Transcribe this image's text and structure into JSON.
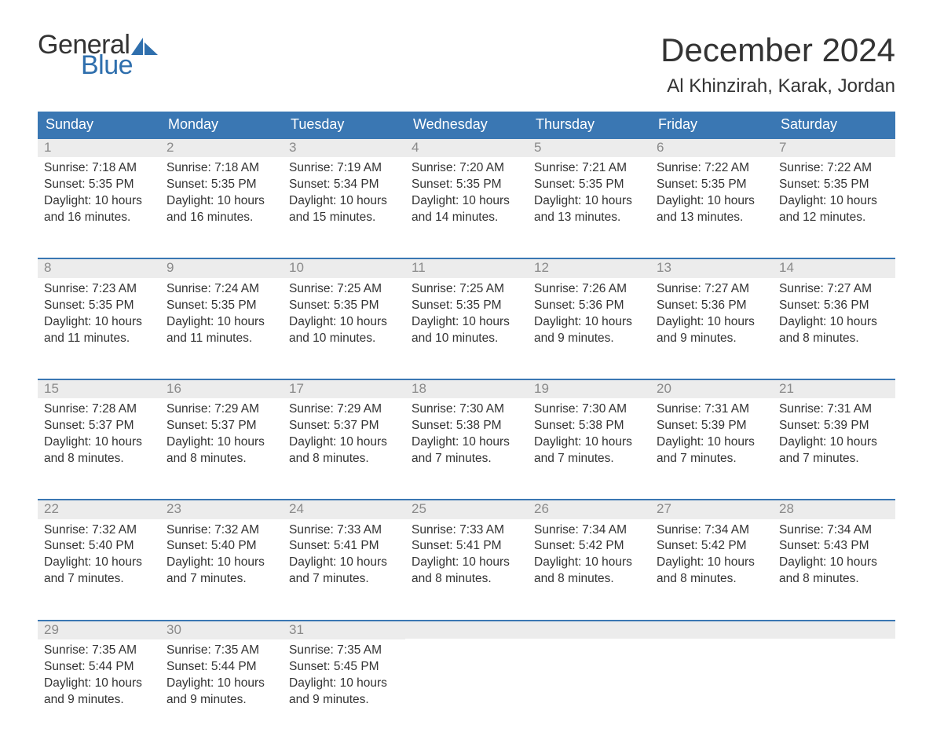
{
  "brand": {
    "word1": "General",
    "word2": "Blue",
    "word1_color": "#333333",
    "word2_color": "#2f6fad",
    "sail_color": "#2f6fad"
  },
  "title": {
    "month": "December 2024",
    "location": "Al Khinzirah, Karak, Jordan"
  },
  "styling": {
    "header_bg": "#3a77b3",
    "header_text_color": "#ffffff",
    "daynum_bg": "#ececec",
    "daynum_border_top": "#3a77b3",
    "daynum_color": "#8a8a8a",
    "body_text_color": "#333333",
    "page_bg": "#ffffff",
    "header_fontsize": 18,
    "daynum_fontsize": 17,
    "content_fontsize": 15.5,
    "month_title_fontsize": 42,
    "location_fontsize": 24
  },
  "weekdays": [
    "Sunday",
    "Monday",
    "Tuesday",
    "Wednesday",
    "Thursday",
    "Friday",
    "Saturday"
  ],
  "days": [
    {
      "n": "1",
      "sunrise": "7:18 AM",
      "sunset": "5:35 PM",
      "dl1": "Daylight: 10 hours",
      "dl2": "and 16 minutes."
    },
    {
      "n": "2",
      "sunrise": "7:18 AM",
      "sunset": "5:35 PM",
      "dl1": "Daylight: 10 hours",
      "dl2": "and 16 minutes."
    },
    {
      "n": "3",
      "sunrise": "7:19 AM",
      "sunset": "5:34 PM",
      "dl1": "Daylight: 10 hours",
      "dl2": "and 15 minutes."
    },
    {
      "n": "4",
      "sunrise": "7:20 AM",
      "sunset": "5:35 PM",
      "dl1": "Daylight: 10 hours",
      "dl2": "and 14 minutes."
    },
    {
      "n": "5",
      "sunrise": "7:21 AM",
      "sunset": "5:35 PM",
      "dl1": "Daylight: 10 hours",
      "dl2": "and 13 minutes."
    },
    {
      "n": "6",
      "sunrise": "7:22 AM",
      "sunset": "5:35 PM",
      "dl1": "Daylight: 10 hours",
      "dl2": "and 13 minutes."
    },
    {
      "n": "7",
      "sunrise": "7:22 AM",
      "sunset": "5:35 PM",
      "dl1": "Daylight: 10 hours",
      "dl2": "and 12 minutes."
    },
    {
      "n": "8",
      "sunrise": "7:23 AM",
      "sunset": "5:35 PM",
      "dl1": "Daylight: 10 hours",
      "dl2": "and 11 minutes."
    },
    {
      "n": "9",
      "sunrise": "7:24 AM",
      "sunset": "5:35 PM",
      "dl1": "Daylight: 10 hours",
      "dl2": "and 11 minutes."
    },
    {
      "n": "10",
      "sunrise": "7:25 AM",
      "sunset": "5:35 PM",
      "dl1": "Daylight: 10 hours",
      "dl2": "and 10 minutes."
    },
    {
      "n": "11",
      "sunrise": "7:25 AM",
      "sunset": "5:35 PM",
      "dl1": "Daylight: 10 hours",
      "dl2": "and 10 minutes."
    },
    {
      "n": "12",
      "sunrise": "7:26 AM",
      "sunset": "5:36 PM",
      "dl1": "Daylight: 10 hours",
      "dl2": "and 9 minutes."
    },
    {
      "n": "13",
      "sunrise": "7:27 AM",
      "sunset": "5:36 PM",
      "dl1": "Daylight: 10 hours",
      "dl2": "and 9 minutes."
    },
    {
      "n": "14",
      "sunrise": "7:27 AM",
      "sunset": "5:36 PM",
      "dl1": "Daylight: 10 hours",
      "dl2": "and 8 minutes."
    },
    {
      "n": "15",
      "sunrise": "7:28 AM",
      "sunset": "5:37 PM",
      "dl1": "Daylight: 10 hours",
      "dl2": "and 8 minutes."
    },
    {
      "n": "16",
      "sunrise": "7:29 AM",
      "sunset": "5:37 PM",
      "dl1": "Daylight: 10 hours",
      "dl2": "and 8 minutes."
    },
    {
      "n": "17",
      "sunrise": "7:29 AM",
      "sunset": "5:37 PM",
      "dl1": "Daylight: 10 hours",
      "dl2": "and 8 minutes."
    },
    {
      "n": "18",
      "sunrise": "7:30 AM",
      "sunset": "5:38 PM",
      "dl1": "Daylight: 10 hours",
      "dl2": "and 7 minutes."
    },
    {
      "n": "19",
      "sunrise": "7:30 AM",
      "sunset": "5:38 PM",
      "dl1": "Daylight: 10 hours",
      "dl2": "and 7 minutes."
    },
    {
      "n": "20",
      "sunrise": "7:31 AM",
      "sunset": "5:39 PM",
      "dl1": "Daylight: 10 hours",
      "dl2": "and 7 minutes."
    },
    {
      "n": "21",
      "sunrise": "7:31 AM",
      "sunset": "5:39 PM",
      "dl1": "Daylight: 10 hours",
      "dl2": "and 7 minutes."
    },
    {
      "n": "22",
      "sunrise": "7:32 AM",
      "sunset": "5:40 PM",
      "dl1": "Daylight: 10 hours",
      "dl2": "and 7 minutes."
    },
    {
      "n": "23",
      "sunrise": "7:32 AM",
      "sunset": "5:40 PM",
      "dl1": "Daylight: 10 hours",
      "dl2": "and 7 minutes."
    },
    {
      "n": "24",
      "sunrise": "7:33 AM",
      "sunset": "5:41 PM",
      "dl1": "Daylight: 10 hours",
      "dl2": "and 7 minutes."
    },
    {
      "n": "25",
      "sunrise": "7:33 AM",
      "sunset": "5:41 PM",
      "dl1": "Daylight: 10 hours",
      "dl2": "and 8 minutes."
    },
    {
      "n": "26",
      "sunrise": "7:34 AM",
      "sunset": "5:42 PM",
      "dl1": "Daylight: 10 hours",
      "dl2": "and 8 minutes."
    },
    {
      "n": "27",
      "sunrise": "7:34 AM",
      "sunset": "5:42 PM",
      "dl1": "Daylight: 10 hours",
      "dl2": "and 8 minutes."
    },
    {
      "n": "28",
      "sunrise": "7:34 AM",
      "sunset": "5:43 PM",
      "dl1": "Daylight: 10 hours",
      "dl2": "and 8 minutes."
    },
    {
      "n": "29",
      "sunrise": "7:35 AM",
      "sunset": "5:44 PM",
      "dl1": "Daylight: 10 hours",
      "dl2": "and 9 minutes."
    },
    {
      "n": "30",
      "sunrise": "7:35 AM",
      "sunset": "5:44 PM",
      "dl1": "Daylight: 10 hours",
      "dl2": "and 9 minutes."
    },
    {
      "n": "31",
      "sunrise": "7:35 AM",
      "sunset": "5:45 PM",
      "dl1": "Daylight: 10 hours",
      "dl2": "and 9 minutes."
    }
  ],
  "labels": {
    "sunrise_prefix": "Sunrise: ",
    "sunset_prefix": "Sunset: "
  }
}
